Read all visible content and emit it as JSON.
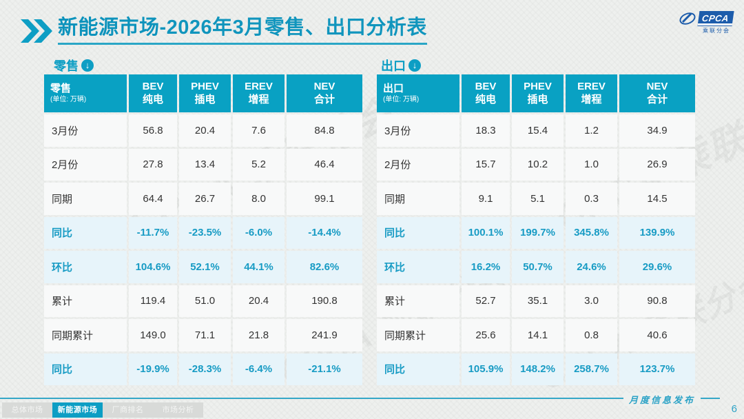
{
  "title": {
    "highlight": "新能源市场",
    "rest": "-2026年3月零售、出口分析表"
  },
  "logo": {
    "text": "CPCA",
    "subtext": "乘联分会"
  },
  "watermark": {
    "text": "CPCA 乘联分会"
  },
  "tables": [
    {
      "section_label": "零售",
      "corner_title": "零售",
      "unit_label": "(单位: 万辆)",
      "columns": [
        {
          "line1": "BEV",
          "line2": "纯电"
        },
        {
          "line1": "PHEV",
          "line2": "插电"
        },
        {
          "line1": "EREV",
          "line2": "增程"
        },
        {
          "line1": "NEV",
          "line2": "合计"
        }
      ],
      "rows": [
        {
          "label": "3月份",
          "type": "normal",
          "values": [
            "56.8",
            "20.4",
            "7.6",
            "84.8"
          ]
        },
        {
          "label": "2月份",
          "type": "normal",
          "values": [
            "27.8",
            "13.4",
            "5.2",
            "46.4"
          ]
        },
        {
          "label": "同期",
          "type": "normal",
          "values": [
            "64.4",
            "26.7",
            "8.0",
            "99.1"
          ]
        },
        {
          "label": "同比",
          "type": "highlight",
          "values": [
            "-11.7%",
            "-23.5%",
            "-6.0%",
            "-14.4%"
          ]
        },
        {
          "label": "环比",
          "type": "highlight",
          "values": [
            "104.6%",
            "52.1%",
            "44.1%",
            "82.6%"
          ]
        },
        {
          "label": "累计",
          "type": "normal",
          "values": [
            "119.4",
            "51.0",
            "20.4",
            "190.8"
          ]
        },
        {
          "label": "同期累计",
          "type": "normal",
          "values": [
            "149.0",
            "71.1",
            "21.8",
            "241.9"
          ]
        },
        {
          "label": "同比",
          "type": "highlight",
          "values": [
            "-19.9%",
            "-28.3%",
            "-6.4%",
            "-21.1%"
          ]
        }
      ]
    },
    {
      "section_label": "出口",
      "corner_title": "出口",
      "unit_label": "(单位: 万辆)",
      "columns": [
        {
          "line1": "BEV",
          "line2": "纯电"
        },
        {
          "line1": "PHEV",
          "line2": "插电"
        },
        {
          "line1": "EREV",
          "line2": "增程"
        },
        {
          "line1": "NEV",
          "line2": "合计"
        }
      ],
      "rows": [
        {
          "label": "3月份",
          "type": "normal",
          "values": [
            "18.3",
            "15.4",
            "1.2",
            "34.9"
          ]
        },
        {
          "label": "2月份",
          "type": "normal",
          "values": [
            "15.7",
            "10.2",
            "1.0",
            "26.9"
          ]
        },
        {
          "label": "同期",
          "type": "normal",
          "values": [
            "9.1",
            "5.1",
            "0.3",
            "14.5"
          ]
        },
        {
          "label": "同比",
          "type": "highlight",
          "values": [
            "100.1%",
            "199.7%",
            "345.8%",
            "139.9%"
          ]
        },
        {
          "label": "环比",
          "type": "highlight",
          "values": [
            "16.2%",
            "50.7%",
            "24.6%",
            "29.6%"
          ]
        },
        {
          "label": "累计",
          "type": "normal",
          "values": [
            "52.7",
            "35.1",
            "3.0",
            "90.8"
          ]
        },
        {
          "label": "同期累计",
          "type": "normal",
          "values": [
            "25.6",
            "14.1",
            "0.8",
            "40.6"
          ]
        },
        {
          "label": "同比",
          "type": "highlight",
          "values": [
            "105.9%",
            "148.2%",
            "258.7%",
            "123.7%"
          ]
        }
      ]
    }
  ],
  "footer": {
    "note": "月度信息发布",
    "page": "6",
    "tabs": [
      {
        "label": "总体市场",
        "active": false
      },
      {
        "label": "新能源市场",
        "active": true
      },
      {
        "label": "厂商排名",
        "active": false
      },
      {
        "label": "市场分析",
        "active": false
      }
    ]
  },
  "colors": {
    "accent_teal": "#0d9ec4",
    "header_teal": "#09a1c3",
    "highlight_row_bg": "#e7f4fa",
    "highlight_text": "#179bc4",
    "logo_blue": "#1c5cab",
    "tab_inactive_bg": "#d8dad8",
    "page_bg": "#eef0ee"
  }
}
